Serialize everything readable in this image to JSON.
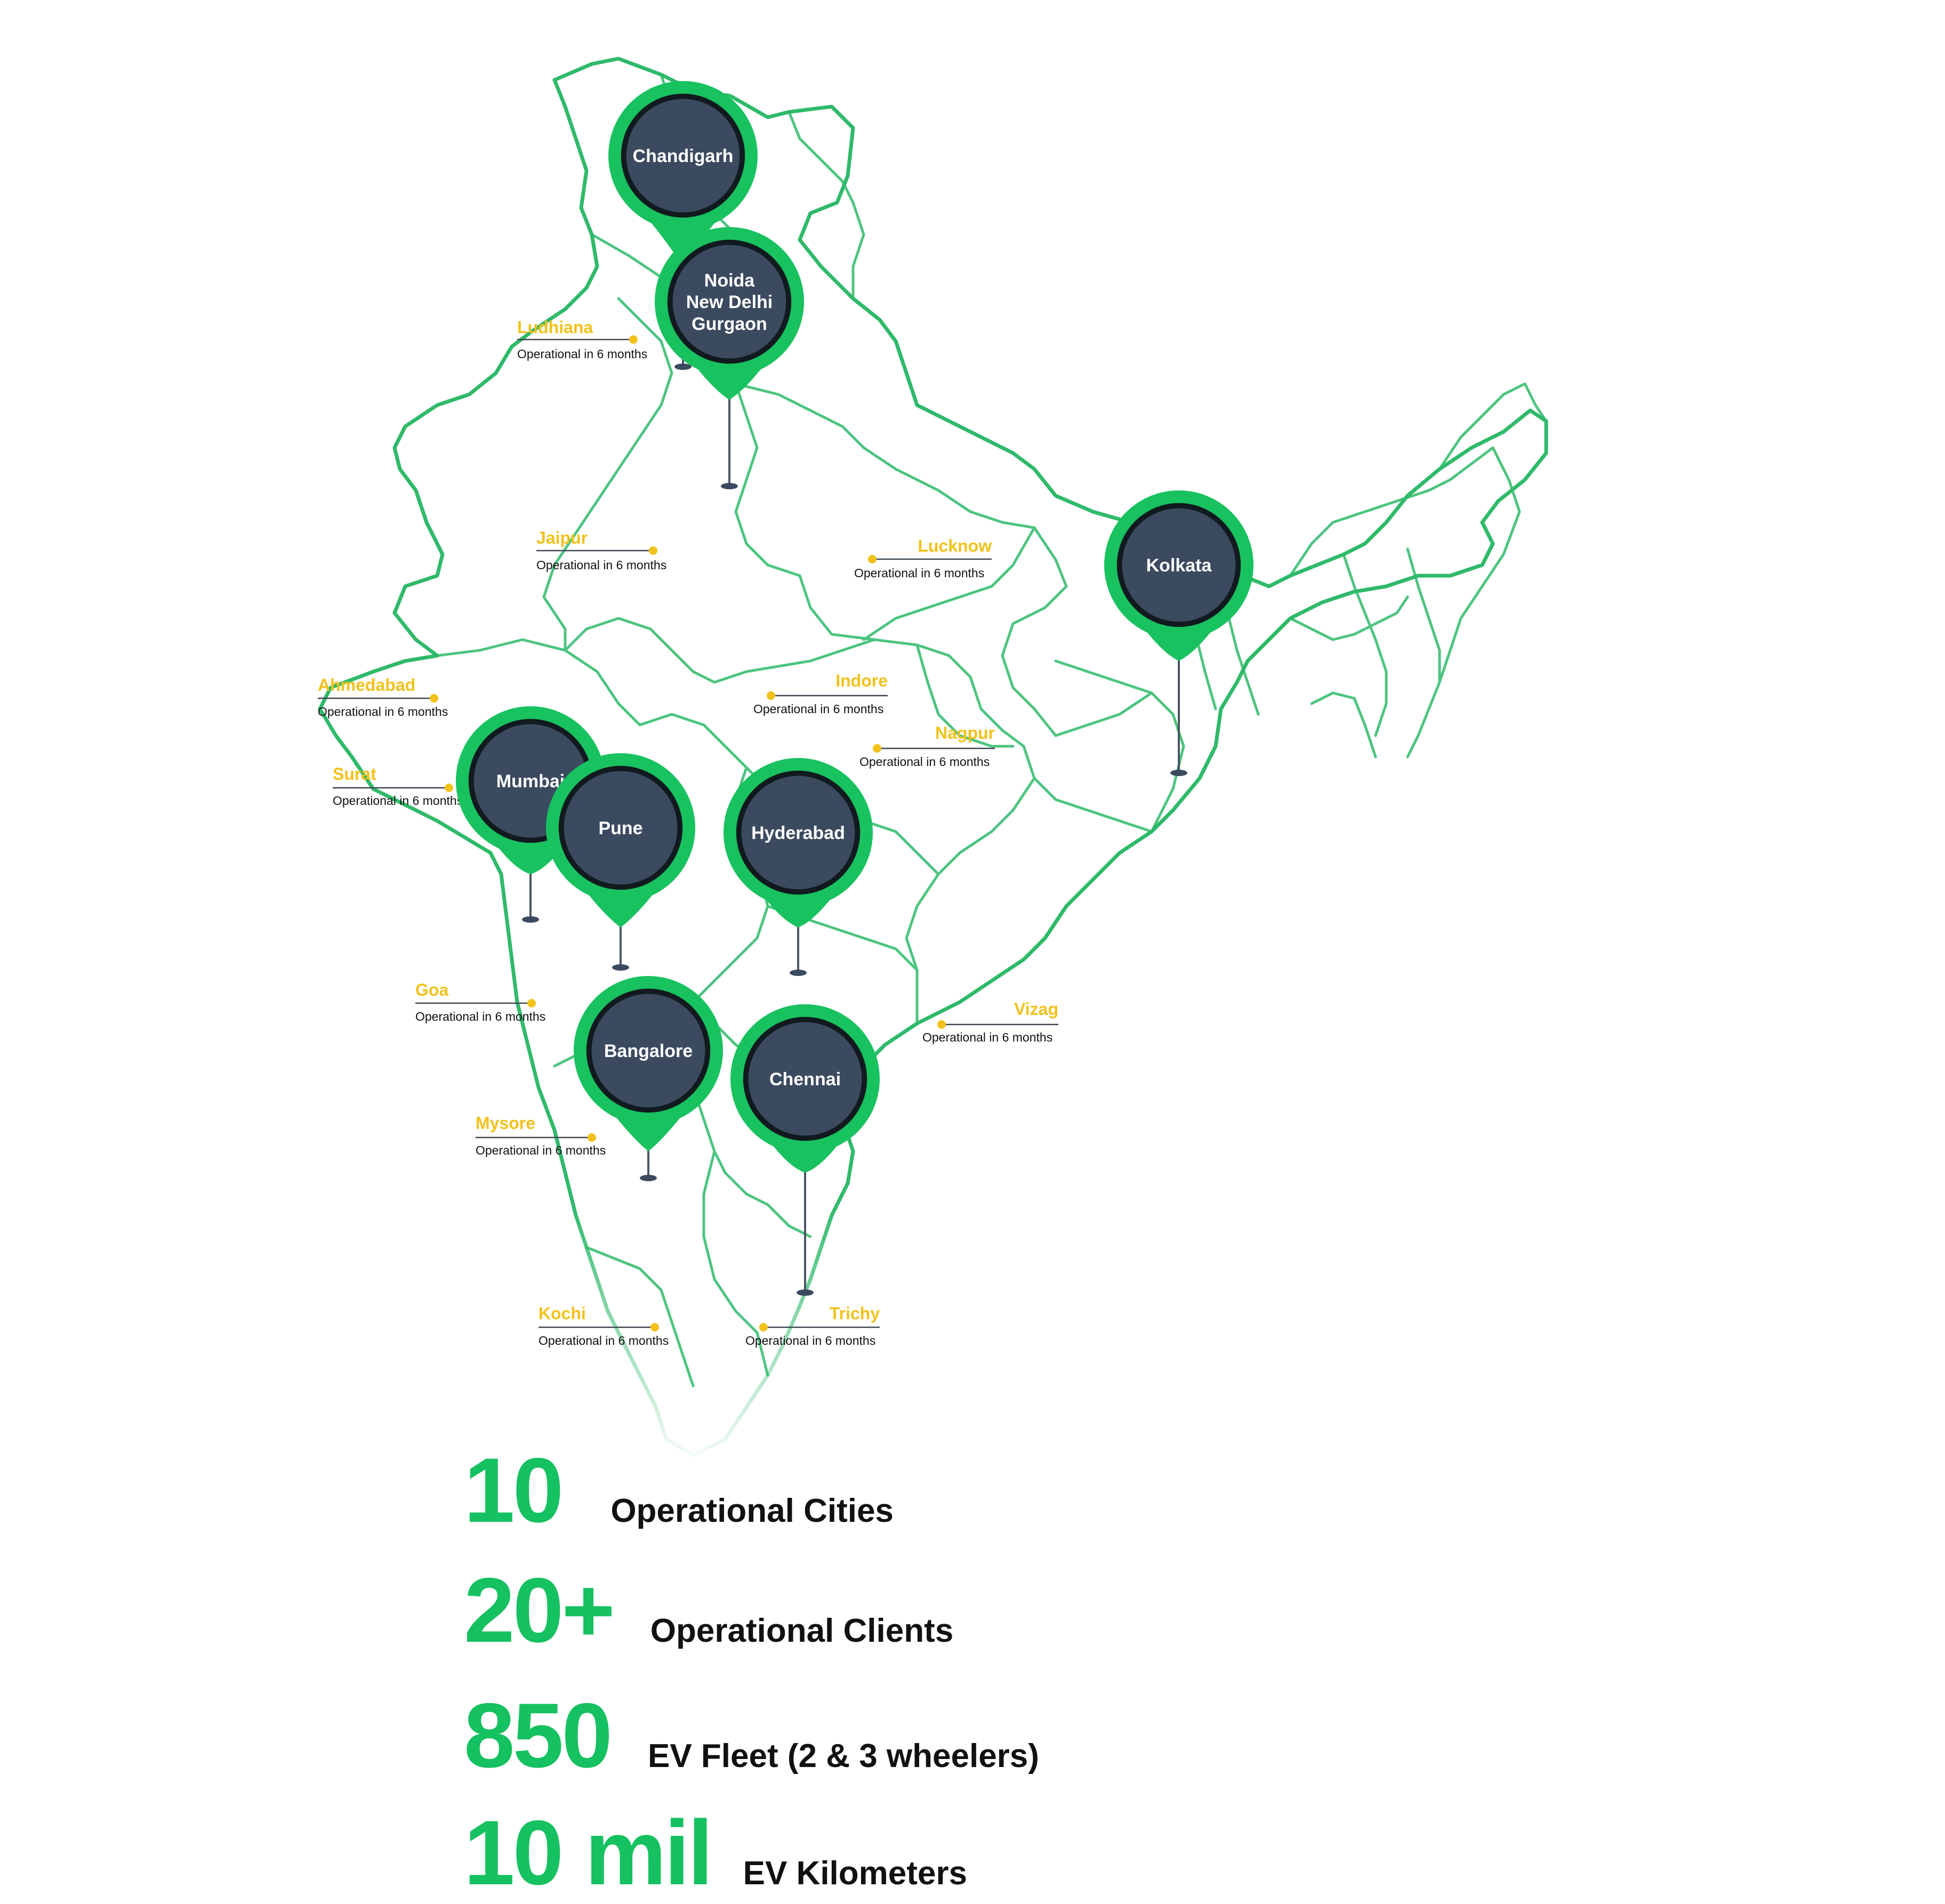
{
  "colors": {
    "border_green": "#2fba6a",
    "pin_green": "#18c25f",
    "pin_dark": "#3b4a5f",
    "pin_ring": "#111a1f",
    "upcoming_yellow": "#f2c21b",
    "text_dark": "#111111"
  },
  "active_cities": [
    {
      "id": "chandigarh",
      "lines": [
        "Chandigarh"
      ]
    },
    {
      "id": "ncr",
      "lines": [
        "Noida",
        "New Delhi",
        "Gurgaon"
      ]
    },
    {
      "id": "kolkata",
      "lines": [
        "Kolkata"
      ]
    },
    {
      "id": "mumbai",
      "lines": [
        "Mumbai"
      ]
    },
    {
      "id": "pune",
      "lines": [
        "Pune"
      ]
    },
    {
      "id": "hyderabad",
      "lines": [
        "Hyderabad"
      ]
    },
    {
      "id": "bangalore",
      "lines": [
        "Bangalore"
      ]
    },
    {
      "id": "chennai",
      "lines": [
        "Chennai"
      ]
    }
  ],
  "upcoming_cities": [
    {
      "id": "ludhiana",
      "name": "Ludhiana",
      "status": "Operational in 6 months"
    },
    {
      "id": "jaipur",
      "name": "Jaipur",
      "status": "Operational in 6 months"
    },
    {
      "id": "lucknow",
      "name": "Lucknow",
      "status": "Operational in 6 months"
    },
    {
      "id": "ahmedabad",
      "name": "Ahmedabad",
      "status": "Operational in 6 months"
    },
    {
      "id": "indore",
      "name": "Indore",
      "status": "Operational in 6 months"
    },
    {
      "id": "nagpur",
      "name": "Nagpur",
      "status": "Operational in 6 months"
    },
    {
      "id": "surat",
      "name": "Surat",
      "status": "Operational in 6 months"
    },
    {
      "id": "goa",
      "name": "Goa",
      "status": "Operational in 6 months"
    },
    {
      "id": "vizag",
      "name": "Vizag",
      "status": "Operational in 6 months"
    },
    {
      "id": "mysore",
      "name": "Mysore",
      "status": "Operational in 6 months"
    },
    {
      "id": "kochi",
      "name": "Kochi",
      "status": "Operational in 6 months"
    },
    {
      "id": "trichy",
      "name": "Trichy",
      "status": "Operational in 6 months"
    }
  ],
  "stats": [
    {
      "value": "10",
      "label": "Operational Cities"
    },
    {
      "value": "20+",
      "label": "Operational Clients"
    },
    {
      "value": "850",
      "label": "EV Fleet (2 & 3 wheelers)"
    },
    {
      "value": "10 mil",
      "label": "EV Kilometers"
    }
  ]
}
